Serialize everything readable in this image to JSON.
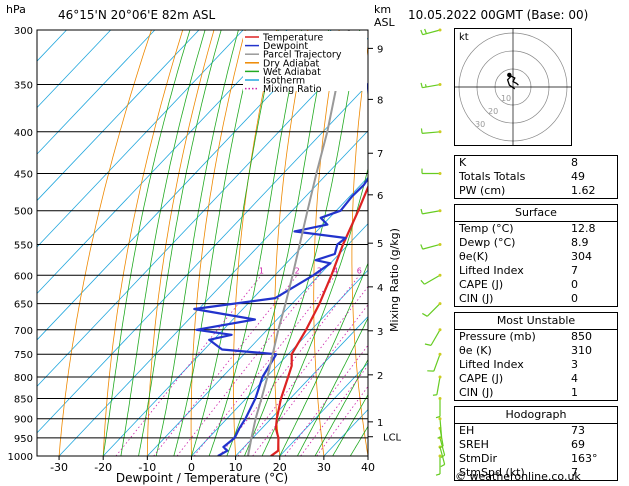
{
  "header": {
    "pressure_unit": "hPa",
    "location": "46°15'N  20°06'E  82m  ASL",
    "height_unit": "km",
    "height_unit2": "ASL",
    "datetime": "10.05.2022  00GMT  (Base: 00)"
  },
  "chart_data": {
    "type": "line",
    "subtype": "skew-t log-p",
    "xlabel": "Dewpoint / Temperature (°C)",
    "ylabel_right": "Mixing Ratio (g/kg)",
    "x_ticks": [
      -30,
      -20,
      -10,
      0,
      10,
      20,
      30,
      40
    ],
    "xlim": [
      -35,
      40
    ],
    "pressure_ticks": [
      300,
      350,
      400,
      450,
      500,
      550,
      600,
      650,
      700,
      750,
      800,
      850,
      900,
      950,
      1000
    ],
    "ylim": [
      1000,
      300
    ],
    "km_ticks": [
      {
        "label": "1",
        "p": 908
      },
      {
        "label": "2",
        "p": 795
      },
      {
        "label": "3",
        "p": 702
      },
      {
        "label": "4",
        "p": 620
      },
      {
        "label": "5",
        "p": 548
      },
      {
        "label": "6",
        "p": 478
      },
      {
        "label": "7",
        "p": 425
      },
      {
        "label": "8",
        "p": 365
      },
      {
        "label": "9",
        "p": 316
      }
    ],
    "lcl": {
      "label": "LCL",
      "p": 947
    },
    "mixing_ratio_labels": [
      "1",
      "2",
      "3",
      "4",
      "6",
      "8",
      "10",
      "16",
      "20",
      "25"
    ],
    "mixing_ratio_values": [
      1,
      2,
      3,
      4,
      6,
      8,
      10,
      16,
      20,
      25
    ],
    "legend": {
      "position": "top-right",
      "items": [
        {
          "name": "Temperature",
          "color": "#dd2222",
          "style": "solid"
        },
        {
          "name": "Dewpoint",
          "color": "#2233cc",
          "style": "solid"
        },
        {
          "name": "Parcel Trajectory",
          "color": "#999999",
          "style": "solid"
        },
        {
          "name": "Dry Adiabat",
          "color": "#ee8800",
          "style": "solid"
        },
        {
          "name": "Wet Adiabat",
          "color": "#22aa22",
          "style": "solid"
        },
        {
          "name": "Isotherm",
          "color": "#22a7dd",
          "style": "solid"
        },
        {
          "name": "Mixing Ratio",
          "color": "#cc22aa",
          "style": "dotted"
        }
      ]
    },
    "series": [
      {
        "name": "Temperature",
        "color": "#dd2222",
        "points": [
          [
            1000,
            18.0
          ],
          [
            985,
            18.5
          ],
          [
            950,
            15.8
          ],
          [
            925,
            13.2
          ],
          [
            900,
            11.3
          ],
          [
            850,
            7.9
          ],
          [
            800,
            4.9
          ],
          [
            775,
            3.3
          ],
          [
            750,
            0.8
          ],
          [
            700,
            -1.2
          ],
          [
            650,
            -3.8
          ],
          [
            600,
            -7.2
          ],
          [
            550,
            -11.2
          ],
          [
            500,
            -15.0
          ],
          [
            450,
            -19.5
          ],
          [
            400,
            -26.0
          ],
          [
            350,
            -32.5
          ],
          [
            300,
            -39.5
          ]
        ]
      },
      {
        "name": "Dewpoint",
        "color": "#2233cc",
        "points": [
          [
            1000,
            6.0
          ],
          [
            985,
            7.0
          ],
          [
            975,
            5.3
          ],
          [
            950,
            5.9
          ],
          [
            925,
            4.9
          ],
          [
            900,
            4.2
          ],
          [
            850,
            2.1
          ],
          [
            800,
            -0.9
          ],
          [
            750,
            -2.7
          ],
          [
            740,
            -16.0
          ],
          [
            720,
            -21.0
          ],
          [
            710,
            -17.0
          ],
          [
            700,
            -26.0
          ],
          [
            680,
            -15.0
          ],
          [
            660,
            -31.0
          ],
          [
            640,
            -15.0
          ],
          [
            600,
            -11.3
          ],
          [
            580,
            -10.0
          ],
          [
            575,
            -14.0
          ],
          [
            565,
            -11.0
          ],
          [
            550,
            -12.5
          ],
          [
            540,
            -12.0
          ],
          [
            530,
            -25.0
          ],
          [
            520,
            -19.0
          ],
          [
            510,
            -22.0
          ],
          [
            500,
            -19.0
          ],
          [
            480,
            -19.5
          ],
          [
            465,
            -19.3
          ],
          [
            450,
            -20.0
          ],
          [
            400,
            -29.0
          ],
          [
            350,
            -40.0
          ],
          [
            320,
            -43.0
          ],
          [
            300,
            -44.0
          ]
        ]
      },
      {
        "name": "Parcel Trajectory",
        "color": "#999999",
        "points": [
          [
            1000,
            12.8
          ],
          [
            947,
            9.5
          ],
          [
            900,
            6.5
          ],
          [
            850,
            3.5
          ],
          [
            800,
            0.2
          ],
          [
            750,
            -3.5
          ],
          [
            700,
            -7.5
          ],
          [
            650,
            -11.5
          ],
          [
            600,
            -16.0
          ],
          [
            550,
            -21.0
          ],
          [
            500,
            -26.5
          ],
          [
            450,
            -32.5
          ],
          [
            400,
            -39.0
          ],
          [
            350,
            -47.0
          ],
          [
            300,
            -56.0
          ]
        ]
      }
    ],
    "wind_barbs": [
      {
        "p": 1000,
        "dir": 180,
        "speed": 5
      },
      {
        "p": 975,
        "dir": 165,
        "speed": 5
      },
      {
        "p": 950,
        "dir": 165,
        "speed": 5
      },
      {
        "p": 925,
        "dir": 170,
        "speed": 5
      },
      {
        "p": 900,
        "dir": 175,
        "speed": 5
      },
      {
        "p": 850,
        "dir": 180,
        "speed": 5
      },
      {
        "p": 800,
        "dir": 190,
        "speed": 5
      },
      {
        "p": 750,
        "dir": 200,
        "speed": 10
      },
      {
        "p": 700,
        "dir": 210,
        "speed": 10
      },
      {
        "p": 650,
        "dir": 225,
        "speed": 10
      },
      {
        "p": 600,
        "dir": 240,
        "speed": 10
      },
      {
        "p": 550,
        "dir": 255,
        "speed": 10
      },
      {
        "p": 500,
        "dir": 260,
        "speed": 10
      },
      {
        "p": 450,
        "dir": 270,
        "speed": 10
      },
      {
        "p": 400,
        "dir": 265,
        "speed": 10
      },
      {
        "p": 350,
        "dir": 260,
        "speed": 15
      },
      {
        "p": 300,
        "dir": 255,
        "speed": 20
      }
    ]
  },
  "hodograph": {
    "label": "kt",
    "ring_labels": [
      "10",
      "20",
      "30"
    ],
    "ring_values": [
      10,
      20,
      30
    ],
    "trace": [
      [
        1,
        -1
      ],
      [
        -2,
        1
      ],
      [
        -3,
        4
      ],
      [
        -1,
        6
      ],
      [
        1,
        5
      ],
      [
        0,
        3
      ],
      [
        2,
        2
      ],
      [
        3,
        1
      ]
    ],
    "storm_motion": {
      "dir": 163,
      "speed": 7
    }
  },
  "indices": {
    "top": [
      {
        "label": "K",
        "value": "8"
      },
      {
        "label": "Totals Totals",
        "value": "49"
      },
      {
        "label": "PW (cm)",
        "value": "1.62"
      }
    ],
    "surface": {
      "title": "Surface",
      "rows": [
        {
          "label": "Temp (°C)",
          "value": "12.8"
        },
        {
          "label": "Dewp (°C)",
          "value": "8.9"
        },
        {
          "label": "θe(K)",
          "value": "304"
        },
        {
          "label": "Lifted Index",
          "value": "7"
        },
        {
          "label": "CAPE (J)",
          "value": "0"
        },
        {
          "label": "CIN (J)",
          "value": "0"
        }
      ]
    },
    "most_unstable": {
      "title": "Most Unstable",
      "rows": [
        {
          "label": "Pressure (mb)",
          "value": "850"
        },
        {
          "label": "θe (K)",
          "value": "310"
        },
        {
          "label": "Lifted Index",
          "value": "3"
        },
        {
          "label": "CAPE (J)",
          "value": "4"
        },
        {
          "label": "CIN (J)",
          "value": "1"
        }
      ]
    },
    "hodograph": {
      "title": "Hodograph",
      "rows": [
        {
          "label": "EH",
          "value": "73"
        },
        {
          "label": "SREH",
          "value": "69"
        },
        {
          "label": "StmDir",
          "value": "163°"
        },
        {
          "label": "StmSpd (kt)",
          "value": "7"
        }
      ]
    }
  },
  "credit": "© weatheronline.co.uk"
}
